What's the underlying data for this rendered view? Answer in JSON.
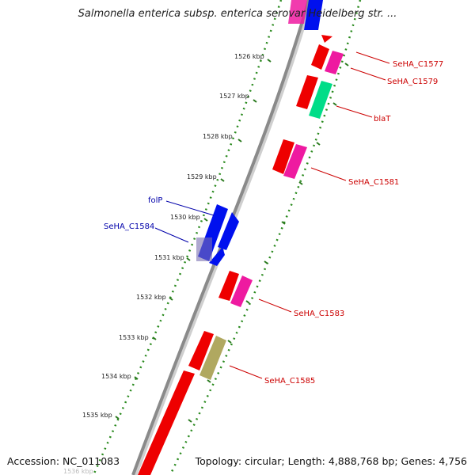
{
  "title": "Salmonella enterica subsp. enterica serovar Heidelberg str. ...",
  "accession": "Accession: NC_011083",
  "summary": "Topology: circular; Length: 4,888,768 bp; Genes: 4,756",
  "colors": {
    "backbone": "#888888",
    "tick": "#2a7a1e",
    "label_red": "#cc0000",
    "label_blue": "#0000aa",
    "gene_red": "#ee0000",
    "gene_pink": "#ee1aa0",
    "gene_green": "#00dd88",
    "gene_blue": "#0010ee",
    "gene_olive": "#b0a860"
  },
  "ticks": [
    {
      "label": "1526 kbp"
    },
    {
      "label": "1527 kbp"
    },
    {
      "label": "1528 kbp"
    },
    {
      "label": "1529 kbp"
    },
    {
      "label": "1530 kbp"
    },
    {
      "label": "1531 kbp"
    },
    {
      "label": "1532 kbp"
    },
    {
      "label": "1533 kbp"
    },
    {
      "label": "1534 kbp"
    },
    {
      "label": "1535 kbp"
    },
    {
      "label": "1536 kbp"
    }
  ],
  "gene_labels": [
    {
      "text": "SeHA_C1577",
      "color": "red"
    },
    {
      "text": "SeHA_C1579",
      "color": "red"
    },
    {
      "text": "blaT",
      "color": "red"
    },
    {
      "text": "SeHA_C1581",
      "color": "red"
    },
    {
      "text": "folP",
      "color": "blue"
    },
    {
      "text": "SeHA_C1584",
      "color": "blue"
    },
    {
      "text": "SeHA_C1583",
      "color": "red"
    },
    {
      "text": "SeHA_C1585",
      "color": "red"
    }
  ]
}
